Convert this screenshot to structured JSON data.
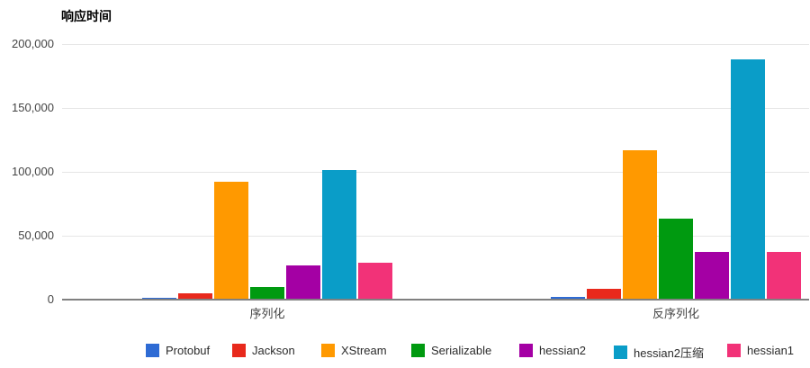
{
  "chart_data": {
    "type": "bar",
    "title": "响应时间",
    "categories": [
      "序列化",
      "反序列化"
    ],
    "series": [
      {
        "name": "Protobuf",
        "color": "#2E6BD4",
        "values": [
          1500,
          2000
        ]
      },
      {
        "name": "Jackson",
        "color": "#E8291C",
        "values": [
          5000,
          8200
        ]
      },
      {
        "name": "XStream",
        "color": "#FF9900",
        "values": [
          92000,
          117000
        ]
      },
      {
        "name": "Serializable",
        "color": "#009A10",
        "values": [
          9500,
          63500
        ]
      },
      {
        "name": "hessian2",
        "color": "#A400A4",
        "values": [
          26500,
          37500
        ]
      },
      {
        "name": "hessian2压缩",
        "color": "#0A9DC8",
        "values": [
          101000,
          188000
        ]
      },
      {
        "name": "hessian1",
        "color": "#F23278",
        "values": [
          28500,
          37000
        ]
      }
    ],
    "ylim": [
      0,
      200000
    ],
    "yticks": [
      {
        "value": 0,
        "label": "0"
      },
      {
        "value": 50000,
        "label": "50,000"
      },
      {
        "value": 100000,
        "label": "100,000"
      },
      {
        "value": 150000,
        "label": "150,000"
      },
      {
        "value": 200000,
        "label": "200,000"
      }
    ],
    "grid": true,
    "legend_position": "bottom"
  },
  "colors": {
    "gridline": "#E6E6E6",
    "axis_line": "#808080",
    "tick_text": "#444444",
    "legend_text": "#2b2b2b"
  }
}
